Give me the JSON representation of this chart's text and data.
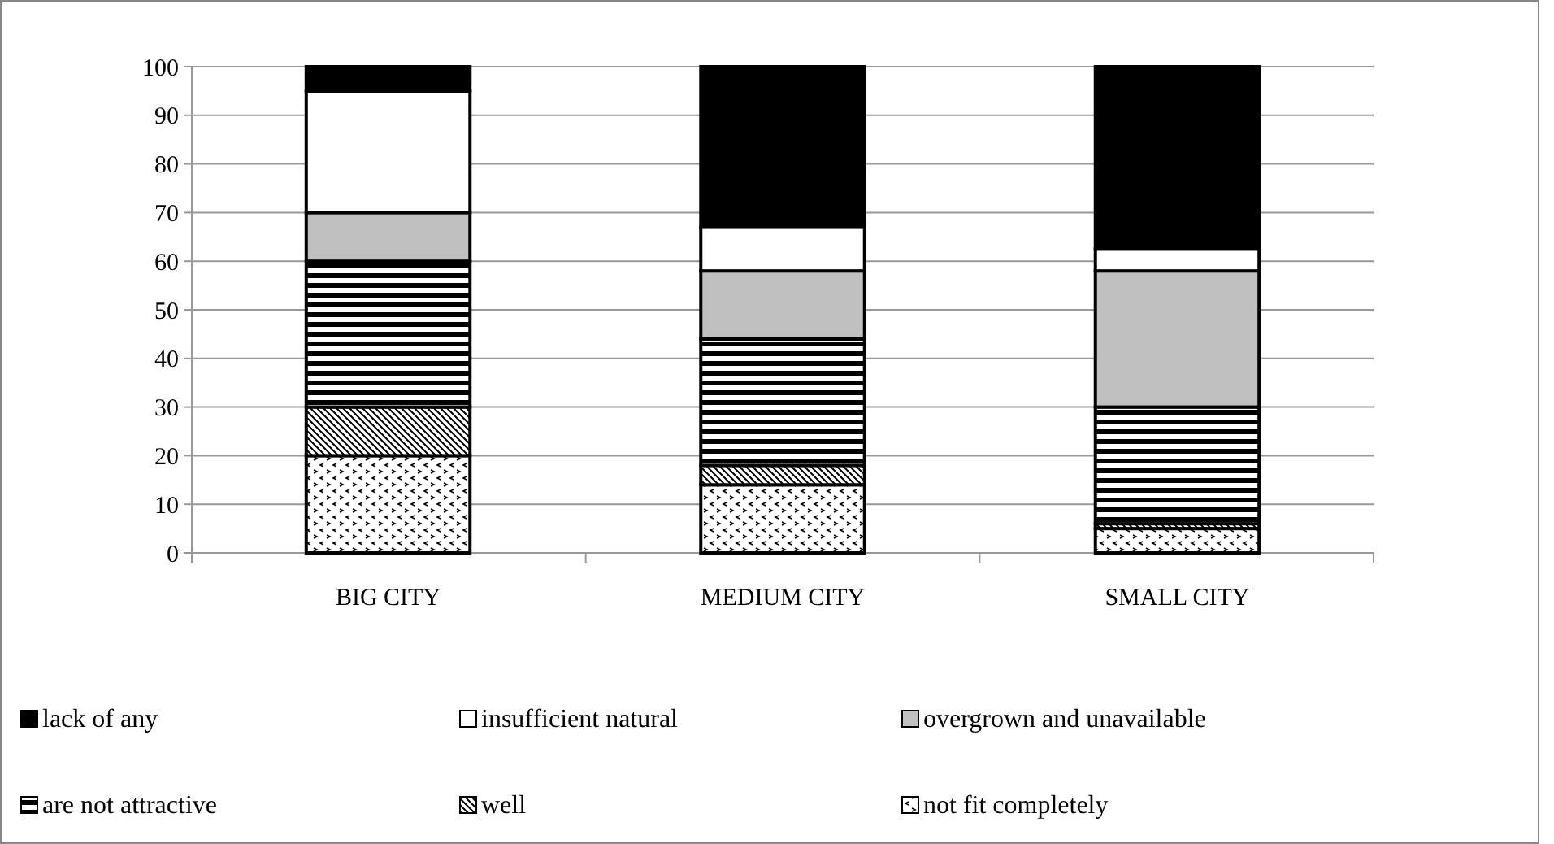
{
  "chart_data": {
    "type": "bar",
    "stacked": true,
    "categories": [
      "BIG CITY",
      "MEDIUM CITY",
      "SMALL CITY"
    ],
    "series": [
      {
        "name": "not fit completely",
        "color": "#000000",
        "values": [
          20,
          14,
          5
        ]
      },
      {
        "name": "well",
        "color": "#000000",
        "values": [
          10,
          4,
          1
        ]
      },
      {
        "name": "are not attractive",
        "color": "#000000",
        "values": [
          30,
          26,
          24
        ]
      },
      {
        "name": "overgrown and unavailable",
        "color": "#c0c0c0",
        "values": [
          10,
          14,
          28
        ]
      },
      {
        "name": "insufficient natural",
        "color": "#ffffff",
        "values": [
          25,
          9,
          4.5
        ]
      },
      {
        "name": "lack of any",
        "color": "#000000",
        "values": [
          5,
          33,
          37.5
        ]
      }
    ],
    "ylim": [
      0,
      100
    ],
    "yticks": [
      0,
      10,
      20,
      30,
      40,
      50,
      60,
      70,
      80,
      90,
      100
    ],
    "grid": "y",
    "legend": "bottom"
  }
}
